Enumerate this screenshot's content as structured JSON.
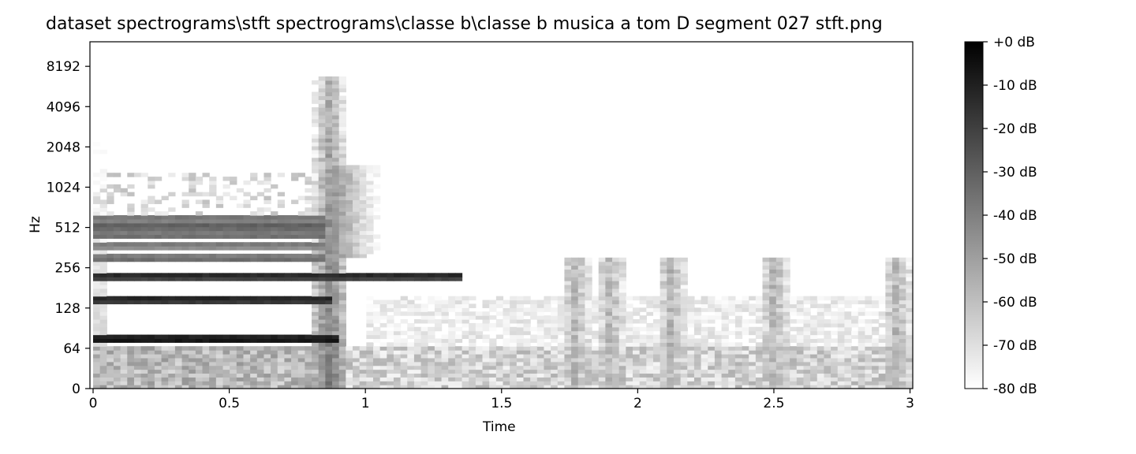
{
  "chart_data": {
    "type": "heatmap",
    "title": "dataset spectrograms\\stft spectrograms\\classe b\\classe b musica a tom D segment 027 stft.png",
    "xlabel": "Time",
    "ylabel": "Hz",
    "x_ticks": [
      "0",
      "0.5",
      "1",
      "1.5",
      "2",
      "2.5",
      "3"
    ],
    "x_tick_values": [
      0,
      0.5,
      1,
      1.5,
      2,
      2.5,
      3
    ],
    "xlim": [
      0,
      3.01
    ],
    "y_ticks": [
      "0",
      "64",
      "128",
      "256",
      "512",
      "1024",
      "2048",
      "4096",
      "8192"
    ],
    "y_tick_values": [
      0,
      64,
      128,
      256,
      512,
      1024,
      2048,
      4096,
      8192
    ],
    "y_scale": "symlog",
    "colormap": "gray_r",
    "colorbar": {
      "ticks": [
        "+0 dB",
        "-10 dB",
        "-20 dB",
        "-30 dB",
        "-40 dB",
        "-50 dB",
        "-60 dB",
        "-70 dB",
        "-80 dB"
      ],
      "values": [
        0,
        -10,
        -20,
        -30,
        -40,
        -50,
        -60,
        -70,
        -80
      ],
      "range": [
        -80,
        0
      ]
    },
    "features": [
      {
        "band_hz": 75,
        "t_start": 0.0,
        "t_end": 0.9,
        "level_db": -2
      },
      {
        "band_hz": 150,
        "t_start": 0.0,
        "t_end": 0.88,
        "level_db": -8
      },
      {
        "band_hz": 225,
        "t_start": 0.0,
        "t_end": 1.35,
        "level_db": -10
      },
      {
        "band_hz": 300,
        "t_start": 0.0,
        "t_end": 0.85,
        "level_db": -30
      },
      {
        "band_hz": 380,
        "t_start": 0.0,
        "t_end": 0.85,
        "level_db": -35
      },
      {
        "band_hz": 450,
        "t_start": 0.0,
        "t_end": 0.85,
        "level_db": -30
      },
      {
        "band_hz": 525,
        "t_start": 0.0,
        "t_end": 0.85,
        "level_db": -25
      },
      {
        "band_hz": 600,
        "t_start": 0.0,
        "t_end": 0.85,
        "level_db": -32
      }
    ],
    "onset_time": 0.87
  }
}
